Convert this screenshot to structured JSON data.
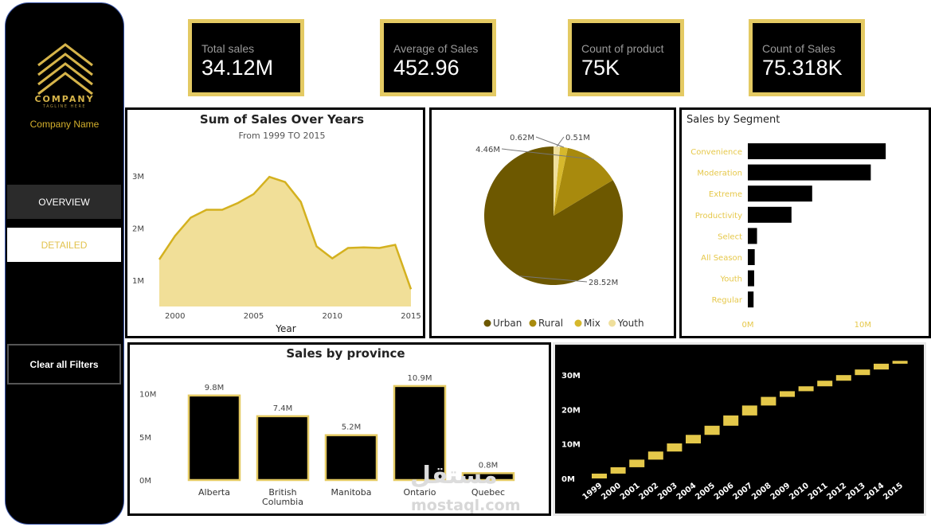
{
  "sidebar": {
    "logo_word": "COMPANY",
    "logo_tagline": "TAGLINE HERE",
    "company_name": "Company Name",
    "nav": {
      "overview": "OVERVIEW",
      "detailed": "DETAILED",
      "clear_filters": "Clear all Filters"
    }
  },
  "kpis": [
    {
      "label": "Total sales",
      "value": "34.12M"
    },
    {
      "label": "Average of Sales",
      "value": "452.96"
    },
    {
      "label": "Count of product",
      "value": "75K"
    },
    {
      "label": "Count of Sales",
      "value": "75.318K"
    }
  ],
  "colors": {
    "gold": "#e4ca63",
    "area_fill": "#f1df98",
    "area_line": "#d4b11f",
    "urban": "#6d5800",
    "rural": "#a88a0d",
    "mix": "#d6b82c",
    "youth": "#efdf9c",
    "bar_black": "#000000",
    "waterfall_gold": "#e4c84a"
  },
  "watermark": {
    "text": "mostaql.com",
    "arabic": "مستقل"
  },
  "chart_data": [
    {
      "type": "area",
      "title": "Sum of Sales Over Years",
      "subtitle": "From 1999 TO 2015",
      "xlabel": "Year",
      "ylabel": "",
      "x": [
        1999,
        2000,
        2001,
        2002,
        2003,
        2004,
        2005,
        2006,
        2007,
        2008,
        2009,
        2010,
        2011,
        2012,
        2013,
        2014,
        2015
      ],
      "values": [
        1.4,
        1.85,
        2.2,
        2.35,
        2.35,
        2.48,
        2.65,
        2.98,
        2.88,
        2.5,
        1.65,
        1.42,
        1.62,
        1.63,
        1.62,
        1.68,
        0.83
      ],
      "ylim": [
        0.5,
        3.5
      ],
      "yticks": [
        {
          "v": 1,
          "label": "1M"
        },
        {
          "v": 2,
          "label": "2M"
        },
        {
          "v": 3,
          "label": "3M"
        }
      ],
      "xticks": [
        2000,
        2005,
        2010,
        2015
      ]
    },
    {
      "type": "pie",
      "slices": [
        {
          "name": "Urban",
          "value": 28.52,
          "label": "28.52M"
        },
        {
          "name": "Rural",
          "value": 4.46,
          "label": "4.46M"
        },
        {
          "name": "Mix",
          "value": 0.62,
          "label": "0.62M"
        },
        {
          "name": "Youth",
          "value": 0.51,
          "label": "0.51M"
        }
      ]
    },
    {
      "type": "bar",
      "orientation": "horizontal",
      "title": "Sales by Segment",
      "categories": [
        "Convenience",
        "Moderation",
        "Extreme",
        "Productivity",
        "Select",
        "All Season",
        "Youth",
        "Regular"
      ],
      "values": [
        12.0,
        10.7,
        5.6,
        3.8,
        0.8,
        0.6,
        0.55,
        0.5
      ],
      "xlim": [
        0,
        14
      ],
      "xticks": [
        {
          "v": 0,
          "label": "0M"
        },
        {
          "v": 10,
          "label": "10M"
        }
      ]
    },
    {
      "type": "bar",
      "title": "Sales by province",
      "categories": [
        "Alberta",
        "British Columbia",
        "Manitoba",
        "Ontario",
        "Quebec"
      ],
      "category_lines": [
        [
          "Alberta"
        ],
        [
          "British",
          "Columbia"
        ],
        [
          "Manitoba"
        ],
        [
          "Ontario"
        ],
        [
          "Quebec"
        ]
      ],
      "values": [
        9.8,
        7.4,
        5.2,
        10.9,
        0.8
      ],
      "data_labels": [
        "9.8M",
        "7.4M",
        "5.2M",
        "10.9M",
        "0.8M"
      ],
      "ylim": [
        0,
        12
      ],
      "yticks": [
        {
          "v": 0,
          "label": "0M"
        },
        {
          "v": 5,
          "label": "5M"
        },
        {
          "v": 10,
          "label": "10M"
        }
      ]
    },
    {
      "type": "bar",
      "subtype": "waterfall",
      "categories": [
        "1999",
        "2000",
        "2001",
        "2002",
        "2003",
        "2004",
        "2005",
        "2006",
        "2007",
        "2008",
        "2009",
        "2010",
        "2011",
        "2012",
        "2013",
        "2014",
        "2015"
      ],
      "values": [
        1.4,
        1.85,
        2.2,
        2.35,
        2.35,
        2.48,
        2.65,
        2.98,
        2.88,
        2.5,
        1.65,
        1.42,
        1.62,
        1.63,
        1.62,
        1.68,
        0.83
      ],
      "ylim": [
        0,
        36
      ],
      "yticks": [
        {
          "v": 0,
          "label": "0M"
        },
        {
          "v": 10,
          "label": "10M"
        },
        {
          "v": 20,
          "label": "20M"
        },
        {
          "v": 30,
          "label": "30M"
        }
      ]
    }
  ]
}
